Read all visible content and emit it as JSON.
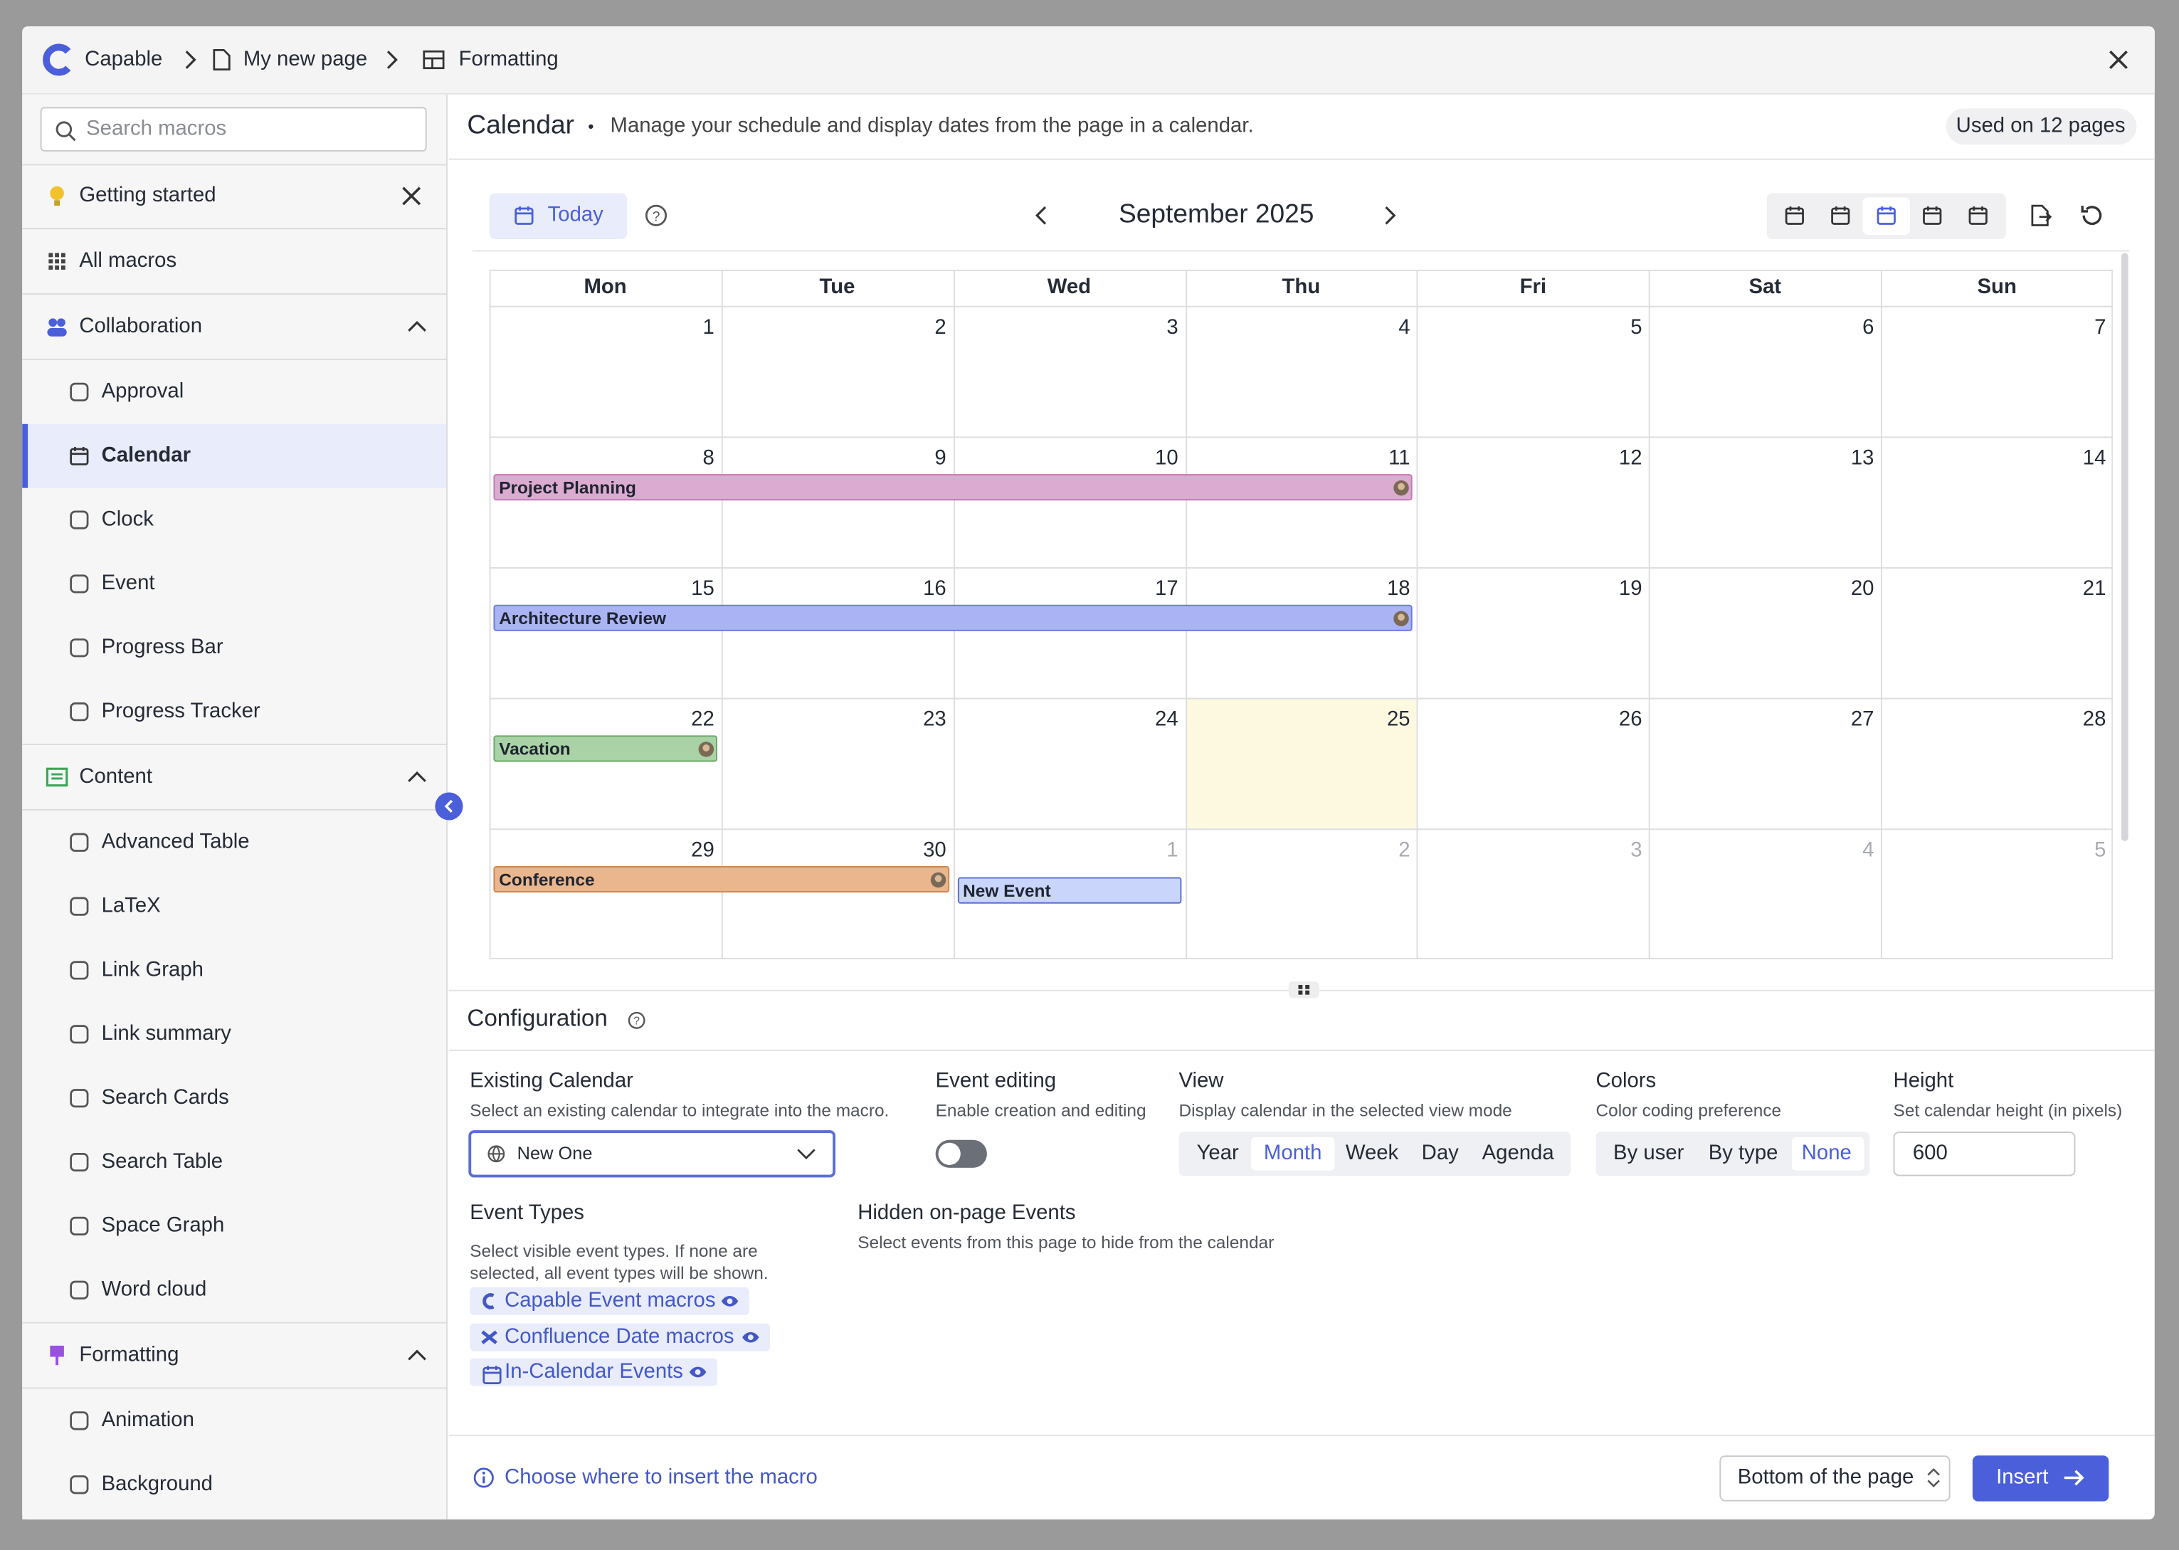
{
  "breadcrumb": [
    "Capable",
    "My new page",
    "Formatting"
  ],
  "search_placeholder": "Search macros",
  "sidebar": {
    "top": [
      "Getting started",
      "All macros"
    ],
    "groups": [
      {
        "title": "Collaboration",
        "items": [
          "Approval",
          "Calendar",
          "Clock",
          "Event",
          "Progress Bar",
          "Progress Tracker"
        ]
      },
      {
        "title": "Content",
        "items": [
          "Advanced Table",
          "LaTeX",
          "Link Graph",
          "Link summary",
          "Search Cards",
          "Search Table",
          "Space Graph",
          "Word cloud"
        ]
      },
      {
        "title": "Formatting",
        "items": [
          "Animation",
          "Background"
        ]
      }
    ],
    "selected": "Calendar"
  },
  "macro": {
    "title": "Calendar",
    "separator": "•",
    "description": "Manage your schedule and display dates from the page in a calendar.",
    "usage": "Used on 12 pages"
  },
  "calendar": {
    "today": "Today",
    "month": "September 2025",
    "weekdays": [
      "Mon",
      "Tue",
      "Wed",
      "Thu",
      "Fri",
      "Sat",
      "Sun"
    ],
    "weeks": [
      [
        1,
        2,
        3,
        4,
        5,
        6,
        7
      ],
      [
        8,
        9,
        10,
        11,
        12,
        13,
        14
      ],
      [
        15,
        16,
        17,
        18,
        19,
        20,
        21
      ],
      [
        22,
        23,
        24,
        25,
        26,
        27,
        28
      ],
      [
        29,
        30,
        1,
        2,
        3,
        4,
        5
      ]
    ],
    "events": [
      {
        "label": "Project Planning",
        "color": "#dcabd2",
        "border": "#c27ab5"
      },
      {
        "label": "Architecture Review",
        "color": "#aab4f4",
        "border": "#6c7ce0"
      },
      {
        "label": "Vacation",
        "color": "#a9d3a6",
        "border": "#6aa867"
      },
      {
        "label": "Conference",
        "color": "#eab68d",
        "border": "#cf8650"
      },
      {
        "label": "New Event",
        "color": "#c9d5fb",
        "border": "#5b6fd6"
      }
    ]
  },
  "config": {
    "title": "Configuration",
    "existing": {
      "label": "Existing Calendar",
      "desc": "Select an existing calendar to integrate into the macro.",
      "value": "New One"
    },
    "editing": {
      "label": "Event editing",
      "desc": "Enable creation and editing"
    },
    "view": {
      "label": "View",
      "desc": "Display calendar in the selected view mode",
      "options": [
        "Year",
        "Month",
        "Week",
        "Day",
        "Agenda"
      ],
      "selected": "Month"
    },
    "colors": {
      "label": "Colors",
      "desc": "Color coding preference",
      "options": [
        "By user",
        "By type",
        "None"
      ],
      "selected": "None"
    },
    "height": {
      "label": "Height",
      "desc": "Set calendar height (in pixels)",
      "value": 600
    },
    "event_types": {
      "label": "Event Types",
      "desc": "Select visible event types. If none are selected, all event types will be shown.",
      "chips": [
        "Capable Event macros",
        "Confluence Date macros",
        "In-Calendar Events"
      ]
    },
    "hidden": {
      "label": "Hidden on-page Events",
      "desc": "Select events from this page to hide from the calendar"
    }
  },
  "footer": {
    "hint": "Choose where to insert the macro",
    "position": "Bottom of the page",
    "insert": "Insert"
  }
}
